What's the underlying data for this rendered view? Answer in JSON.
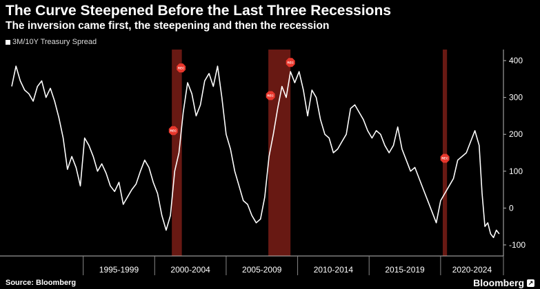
{
  "header": {
    "title": "The Curve Steepened Before the Last Three Recessions",
    "subtitle": "The inversion came first, the steepening and then the recession",
    "legend_label": "3M/10Y Treasury Spread"
  },
  "footer": {
    "source": "Source: Bloomberg",
    "brand": "Bloomberg",
    "brand_icon": "bloomberg-terminal-icon"
  },
  "colors": {
    "background": "#000000",
    "line": "#ffffff",
    "recession_band": "#6e1a14",
    "recession_marker": "#e8372c"
  },
  "chart_data": {
    "type": "line",
    "title": "The Curve Steepened Before the Last Three Recessions",
    "subtitle": "The inversion came first, the steepening and then the recession",
    "series": [
      {
        "name": "3M/10Y Treasury Spread",
        "points": [
          [
            1990.0,
            330
          ],
          [
            1990.3,
            385
          ],
          [
            1990.6,
            345
          ],
          [
            1990.9,
            320
          ],
          [
            1991.2,
            310
          ],
          [
            1991.5,
            290
          ],
          [
            1991.8,
            330
          ],
          [
            1992.1,
            345
          ],
          [
            1992.4,
            300
          ],
          [
            1992.7,
            325
          ],
          [
            1993.0,
            290
          ],
          [
            1993.3,
            245
          ],
          [
            1993.6,
            190
          ],
          [
            1993.9,
            105
          ],
          [
            1994.2,
            140
          ],
          [
            1994.5,
            110
          ],
          [
            1994.8,
            60
          ],
          [
            1995.1,
            190
          ],
          [
            1995.4,
            170
          ],
          [
            1995.7,
            140
          ],
          [
            1996.0,
            100
          ],
          [
            1996.3,
            120
          ],
          [
            1996.6,
            95
          ],
          [
            1996.9,
            60
          ],
          [
            1997.2,
            45
          ],
          [
            1997.5,
            70
          ],
          [
            1997.8,
            10
          ],
          [
            1998.1,
            30
          ],
          [
            1998.4,
            50
          ],
          [
            1998.7,
            65
          ],
          [
            1999.0,
            100
          ],
          [
            1999.3,
            130
          ],
          [
            1999.6,
            110
          ],
          [
            1999.9,
            70
          ],
          [
            2000.2,
            40
          ],
          [
            2000.5,
            -20
          ],
          [
            2000.8,
            -60
          ],
          [
            2001.1,
            -20
          ],
          [
            2001.4,
            100
          ],
          [
            2001.7,
            150
          ],
          [
            2002.0,
            260
          ],
          [
            2002.3,
            340
          ],
          [
            2002.6,
            310
          ],
          [
            2002.9,
            250
          ],
          [
            2003.2,
            280
          ],
          [
            2003.5,
            345
          ],
          [
            2003.8,
            365
          ],
          [
            2004.1,
            330
          ],
          [
            2004.4,
            385
          ],
          [
            2004.7,
            300
          ],
          [
            2005.0,
            200
          ],
          [
            2005.3,
            160
          ],
          [
            2005.6,
            100
          ],
          [
            2005.9,
            60
          ],
          [
            2006.2,
            20
          ],
          [
            2006.5,
            10
          ],
          [
            2006.8,
            -20
          ],
          [
            2007.1,
            -40
          ],
          [
            2007.4,
            -30
          ],
          [
            2007.7,
            30
          ],
          [
            2008.0,
            140
          ],
          [
            2008.3,
            200
          ],
          [
            2008.6,
            270
          ],
          [
            2008.9,
            330
          ],
          [
            2009.2,
            300
          ],
          [
            2009.5,
            370
          ],
          [
            2009.8,
            340
          ],
          [
            2010.1,
            370
          ],
          [
            2010.4,
            320
          ],
          [
            2010.7,
            250
          ],
          [
            2011.0,
            320
          ],
          [
            2011.3,
            300
          ],
          [
            2011.6,
            240
          ],
          [
            2011.9,
            200
          ],
          [
            2012.2,
            190
          ],
          [
            2012.5,
            150
          ],
          [
            2012.8,
            160
          ],
          [
            2013.1,
            180
          ],
          [
            2013.4,
            200
          ],
          [
            2013.7,
            270
          ],
          [
            2014.0,
            280
          ],
          [
            2014.3,
            260
          ],
          [
            2014.6,
            240
          ],
          [
            2014.9,
            210
          ],
          [
            2015.2,
            190
          ],
          [
            2015.5,
            210
          ],
          [
            2015.8,
            200
          ],
          [
            2016.1,
            170
          ],
          [
            2016.4,
            150
          ],
          [
            2016.7,
            170
          ],
          [
            2017.0,
            220
          ],
          [
            2017.3,
            160
          ],
          [
            2017.6,
            130
          ],
          [
            2017.9,
            100
          ],
          [
            2018.2,
            110
          ],
          [
            2018.5,
            80
          ],
          [
            2018.8,
            50
          ],
          [
            2019.1,
            20
          ],
          [
            2019.4,
            -10
          ],
          [
            2019.7,
            -40
          ],
          [
            2020.0,
            20
          ],
          [
            2020.3,
            40
          ],
          [
            2020.6,
            60
          ],
          [
            2020.9,
            80
          ],
          [
            2021.2,
            130
          ],
          [
            2021.5,
            140
          ],
          [
            2021.8,
            150
          ],
          [
            2022.1,
            180
          ],
          [
            2022.4,
            210
          ],
          [
            2022.7,
            170
          ],
          [
            2022.9,
            40
          ],
          [
            2023.1,
            -50
          ],
          [
            2023.3,
            -40
          ],
          [
            2023.5,
            -70
          ],
          [
            2023.7,
            -80
          ],
          [
            2023.9,
            -60
          ],
          [
            2024.1,
            -70
          ]
        ]
      }
    ],
    "xlim": [
      1990.0,
      2024.3
    ],
    "ylim": [
      -130,
      430
    ],
    "yticks": [
      -100,
      0,
      100,
      200,
      300,
      400
    ],
    "y_axis_side": "right",
    "x_periods": [
      {
        "label": "1995-1999",
        "start": 1995,
        "end": 2000
      },
      {
        "label": "2000-2004",
        "start": 2000,
        "end": 2005
      },
      {
        "label": "2005-2009",
        "start": 2005,
        "end": 2010
      },
      {
        "label": "2010-2014",
        "start": 2010,
        "end": 2015
      },
      {
        "label": "2015-2019",
        "start": 2015,
        "end": 2020
      },
      {
        "label": "2020-2024",
        "start": 2020,
        "end": 2025
      }
    ],
    "recessions": [
      {
        "start": 2001.2,
        "end": 2001.9
      },
      {
        "start": 2007.95,
        "end": 2009.5
      },
      {
        "start": 2020.15,
        "end": 2020.45
      }
    ],
    "rec_markers": [
      {
        "label": "REC",
        "x": 2001.3,
        "y": 210
      },
      {
        "label": "REC",
        "x": 2001.85,
        "y": 380
      },
      {
        "label": "REC",
        "x": 2008.1,
        "y": 305
      },
      {
        "label": "REC",
        "x": 2009.5,
        "y": 395
      },
      {
        "label": "REC",
        "x": 2020.3,
        "y": 135
      }
    ],
    "grid": false,
    "legend_position": "top-left"
  }
}
